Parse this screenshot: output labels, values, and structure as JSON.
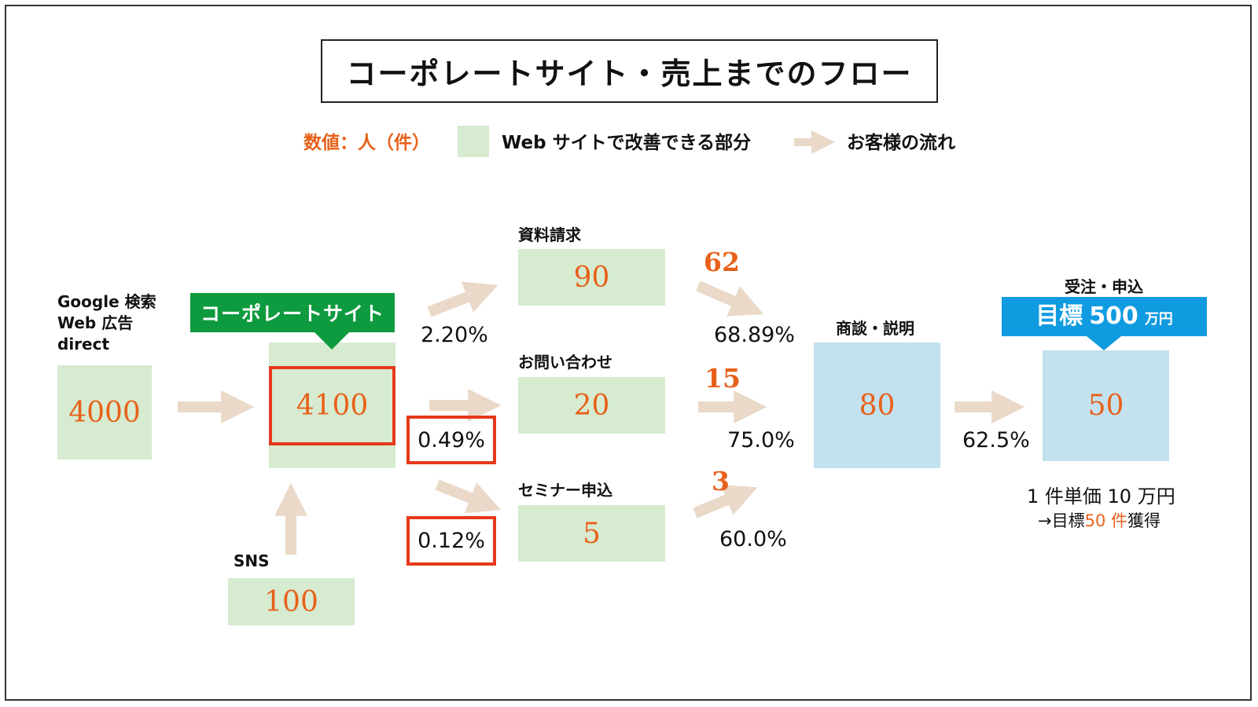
{
  "title": "コーポレートサイト・売上までのフロー",
  "legend": {
    "numbers": "数値：人（件）",
    "web_area": "Web サイトで改善できる部分",
    "flow": "お客様の流れ",
    "swatch_color": "#d6ebd0",
    "arrow_color": "#ead9c8"
  },
  "sources": {
    "label_lines": [
      "Google 検索",
      "Web 広告",
      "direct"
    ],
    "value": "4000"
  },
  "sns": {
    "label": "SNS",
    "value": "100"
  },
  "corporate_site": {
    "banner": "コーポレートサイト",
    "value": "4100"
  },
  "branches": [
    {
      "label": "資料請求",
      "value": "90",
      "rate": "2.20%",
      "next_count": "62",
      "next_rate": "68.89%"
    },
    {
      "label": "お問い合わせ",
      "value": "20",
      "rate": "0.49%",
      "next_count": "15",
      "next_rate": "75.0%"
    },
    {
      "label": "セミナー申込",
      "value": "5",
      "rate": "0.12%",
      "next_count": "3",
      "next_rate": "60.0%"
    }
  ],
  "meeting": {
    "label": "商談・説明",
    "value": "80",
    "rate": "62.5%"
  },
  "order": {
    "label": "受注・申込",
    "value": "50",
    "target_prefix": "目標",
    "target_amount": "500",
    "target_unit": "万円"
  },
  "unit_price": "1 件単価 10 万円",
  "goal": {
    "prefix": "→目標",
    "count": "50 件",
    "suffix": "獲得"
  },
  "colors": {
    "orange": "#e8611a",
    "red_highlight": "#e6391b",
    "green_banner": "#0e9a3e",
    "blue_banner": "#109be0",
    "green_box": "#d6ebd0",
    "blue_box": "#c3e1ef"
  }
}
